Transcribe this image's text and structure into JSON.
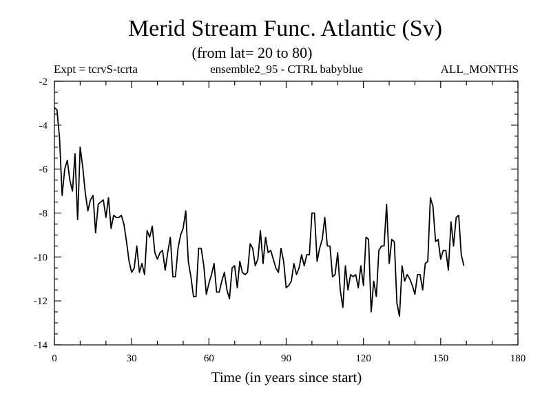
{
  "chart_data": {
    "type": "line",
    "title": "Merid Stream Func. Atlantic (Sv)",
    "subtitle": "(from lat= 20 to 80)",
    "header_left": "Expt = tcrvS-tcrta",
    "header_center": "ensemble2_95 - CTRL babyblue",
    "header_right": "ALL_MONTHS",
    "xlabel": "Time (in years since start)",
    "ylabel": "",
    "xlim": [
      0,
      180
    ],
    "ylim": [
      -14,
      -2
    ],
    "xticks": [
      0,
      30,
      60,
      90,
      120,
      150,
      180
    ],
    "yticks": [
      -14,
      -12,
      -10,
      -8,
      -6,
      -4,
      -2
    ],
    "line_color": "#000000",
    "series": [
      {
        "name": "ensemble2_95 - CTRL babyblue",
        "x": [
          0,
          1,
          2,
          3,
          4,
          5,
          6,
          7,
          8,
          9,
          10,
          11,
          12,
          13,
          14,
          15,
          16,
          17,
          18,
          19,
          20,
          21,
          22,
          23,
          24,
          25,
          26,
          27,
          28,
          29,
          30,
          31,
          32,
          33,
          34,
          35,
          36,
          37,
          38,
          39,
          40,
          41,
          42,
          43,
          44,
          45,
          46,
          47,
          48,
          49,
          50,
          51,
          52,
          53,
          54,
          55,
          56,
          57,
          58,
          59,
          60,
          61,
          62,
          63,
          64,
          65,
          66,
          67,
          68,
          69,
          70,
          71,
          72,
          73,
          74,
          75,
          76,
          77,
          78,
          79,
          80,
          81,
          82,
          83,
          84,
          85,
          86,
          87,
          88,
          89,
          90,
          91,
          92,
          93,
          94,
          95,
          96,
          97,
          98,
          99,
          100,
          101,
          102,
          103,
          104,
          105,
          106,
          107,
          108,
          109,
          110,
          111,
          112,
          113,
          114,
          115,
          116,
          117,
          118,
          119,
          120,
          121,
          122,
          123,
          124,
          125,
          126,
          127,
          128,
          129,
          130,
          131,
          132,
          133,
          134,
          135,
          136,
          137,
          138,
          139,
          140,
          141,
          142,
          143,
          144,
          145,
          146,
          147,
          148,
          149,
          150,
          151,
          152,
          153,
          154,
          155,
          156,
          157,
          158,
          159
        ],
        "values": [
          -3.2,
          -3.3,
          -4.6,
          -7.2,
          -6.0,
          -5.6,
          -6.5,
          -7.0,
          -5.3,
          -8.3,
          -5.0,
          -5.9,
          -7.1,
          -7.9,
          -7.4,
          -7.2,
          -8.9,
          -7.6,
          -7.5,
          -7.4,
          -8.2,
          -7.3,
          -8.7,
          -8.1,
          -8.2,
          -8.2,
          -8.1,
          -8.5,
          -9.3,
          -10.2,
          -10.7,
          -10.5,
          -9.5,
          -10.7,
          -10.3,
          -10.8,
          -8.8,
          -9.1,
          -8.6,
          -9.8,
          -10.1,
          -9.8,
          -9.7,
          -10.6,
          -9.8,
          -9.1,
          -10.9,
          -10.9,
          -9.6,
          -9.0,
          -8.7,
          -7.9,
          -10.2,
          -10.9,
          -11.8,
          -11.8,
          -9.6,
          -9.6,
          -10.4,
          -11.7,
          -11.2,
          -10.8,
          -10.3,
          -11.6,
          -11.6,
          -11.1,
          -10.7,
          -11.5,
          -11.9,
          -10.5,
          -10.4,
          -11.4,
          -10.2,
          -10.7,
          -10.8,
          -10.7,
          -9.4,
          -9.6,
          -10.4,
          -10.1,
          -8.8,
          -10.3,
          -9.1,
          -9.8,
          -9.7,
          -10.1,
          -10.5,
          -10.7,
          -9.6,
          -10.2,
          -11.4,
          -11.3,
          -11.1,
          -10.3,
          -10.8,
          -10.5,
          -9.9,
          -10.4,
          -9.9,
          -9.9,
          -8.0,
          -8.0,
          -10.2,
          -9.6,
          -9.2,
          -8.2,
          -9.5,
          -9.5,
          -10.9,
          -10.8,
          -9.8,
          -11.5,
          -12.3,
          -10.4,
          -11.5,
          -10.8,
          -10.9,
          -10.8,
          -11.4,
          -10.4,
          -11.3,
          -9.1,
          -9.2,
          -12.5,
          -11.1,
          -11.8,
          -9.7,
          -9.5,
          -9.5,
          -7.6,
          -10.3,
          -9.2,
          -9.3,
          -12.1,
          -12.7,
          -10.4,
          -11.1,
          -10.8,
          -11.0,
          -11.3,
          -11.7,
          -10.8,
          -10.8,
          -11.5,
          -10.3,
          -10.2,
          -7.3,
          -7.7,
          -9.3,
          -9.2,
          -10.1,
          -9.7,
          -9.7,
          -10.6,
          -8.4,
          -9.5,
          -8.2,
          -8.1,
          -9.9,
          -10.4
        ]
      }
    ]
  }
}
